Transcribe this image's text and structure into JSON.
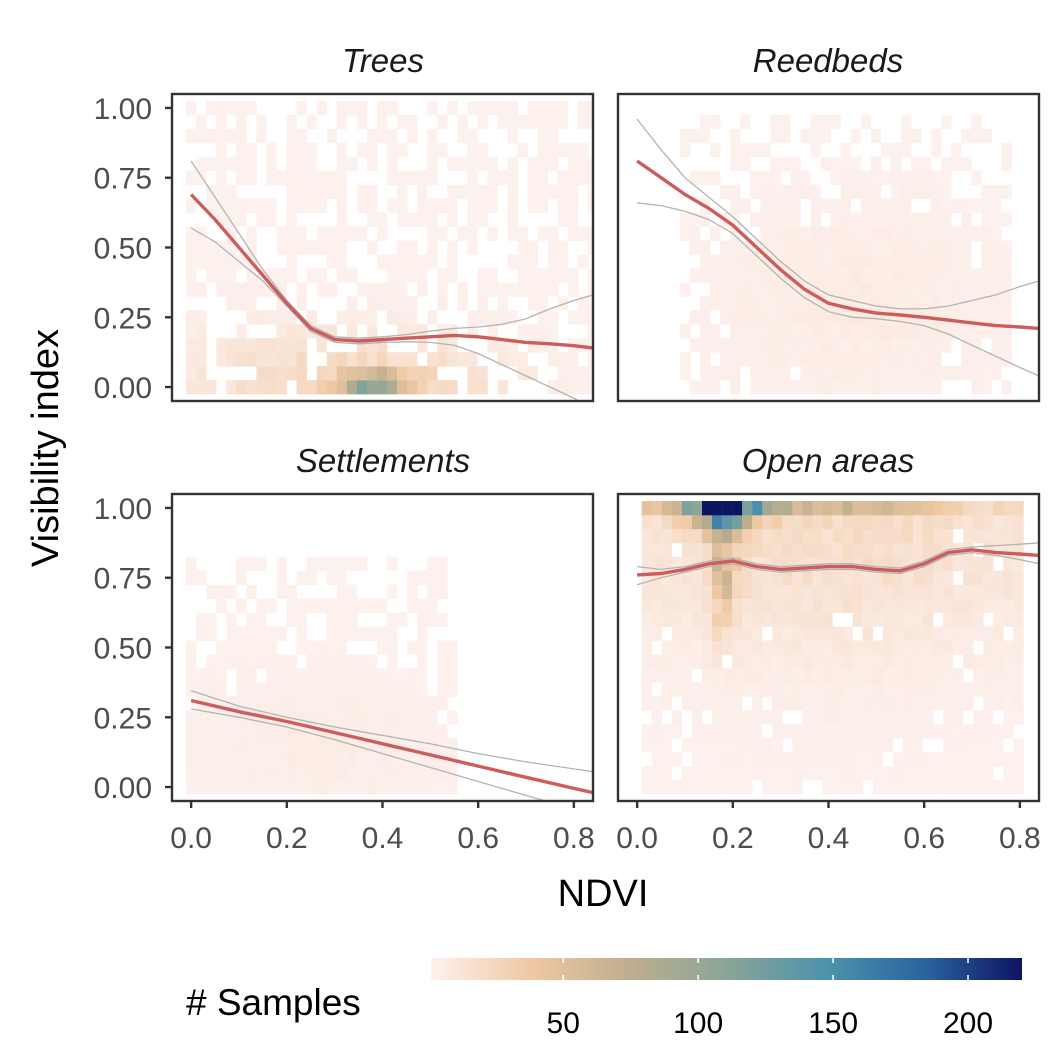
{
  "chart_data": {
    "type": "heatmap",
    "xlabel": "NDVI",
    "ylabel": "Visibility index",
    "x_ticks": [
      "0.0",
      "0.2",
      "0.4",
      "0.6",
      "0.8"
    ],
    "x_tick_values": [
      0.0,
      0.2,
      0.4,
      0.6,
      0.8
    ],
    "y_ticks": [
      "0.00",
      "0.25",
      "0.50",
      "0.75",
      "1.00"
    ],
    "y_tick_values": [
      0.0,
      0.25,
      0.5,
      0.75,
      1.0
    ],
    "xlim": [
      -0.04,
      0.84
    ],
    "ylim": [
      -0.05,
      1.05
    ],
    "bin_width": 0.021,
    "bin_height": 0.05,
    "grid": false,
    "legend": {
      "title": "# Samples",
      "position": "bottom",
      "min": 1,
      "max": 220,
      "ticks": [
        50,
        100,
        150,
        200
      ],
      "tick_labels": [
        "50",
        "100",
        "150",
        "200"
      ],
      "colors": [
        "#fdf1ee",
        "#f0c9a3",
        "#bfae8e",
        "#8aa598",
        "#4e93ab",
        "#2b64a0",
        "#0d1461"
      ]
    },
    "smooth_color": "#cd5c5c",
    "ci_color": "#b3b3b3",
    "panels": [
      {
        "title": "Trees",
        "smooth": {
          "x": [
            0.0,
            0.05,
            0.1,
            0.15,
            0.2,
            0.25,
            0.3,
            0.35,
            0.4,
            0.45,
            0.5,
            0.55,
            0.6,
            0.65,
            0.7,
            0.75,
            0.8,
            0.84
          ],
          "y": [
            0.69,
            0.6,
            0.5,
            0.4,
            0.3,
            0.21,
            0.17,
            0.165,
            0.17,
            0.175,
            0.18,
            0.185,
            0.18,
            0.17,
            0.16,
            0.155,
            0.148,
            0.14
          ],
          "lower": [
            0.57,
            0.52,
            0.45,
            0.38,
            0.29,
            0.2,
            0.16,
            0.155,
            0.16,
            0.162,
            0.16,
            0.15,
            0.12,
            0.08,
            0.04,
            0.0,
            -0.04,
            -0.08
          ],
          "upper": [
            0.81,
            0.68,
            0.55,
            0.42,
            0.31,
            0.22,
            0.18,
            0.175,
            0.18,
            0.188,
            0.2,
            0.21,
            0.215,
            0.225,
            0.245,
            0.28,
            0.31,
            0.33
          ]
        },
        "density": [
          {
            "x": 0.18,
            "y": 0.0,
            "sx": 0.32,
            "sy": 0.25,
            "w": 0.3
          },
          {
            "x": 0.36,
            "y": 0.0,
            "sx": 0.2,
            "sy": 0.12,
            "w": 1.2
          },
          {
            "x": 0.38,
            "y": 0.02,
            "sx": 0.04,
            "sy": 0.02,
            "w": 6.0
          }
        ],
        "peak": 100,
        "x_range": [
          0.0,
          0.84
        ],
        "y_range": [
          0.0,
          1.0
        ],
        "fill": 0.55
      },
      {
        "title": "Reedbeds",
        "smooth": {
          "x": [
            0.0,
            0.05,
            0.1,
            0.15,
            0.2,
            0.25,
            0.3,
            0.35,
            0.4,
            0.45,
            0.5,
            0.55,
            0.6,
            0.65,
            0.7,
            0.75,
            0.8,
            0.84
          ],
          "y": [
            0.81,
            0.75,
            0.69,
            0.64,
            0.58,
            0.5,
            0.42,
            0.35,
            0.3,
            0.28,
            0.265,
            0.258,
            0.25,
            0.24,
            0.23,
            0.22,
            0.215,
            0.21
          ],
          "lower": [
            0.66,
            0.65,
            0.63,
            0.6,
            0.55,
            0.47,
            0.39,
            0.32,
            0.27,
            0.25,
            0.245,
            0.235,
            0.22,
            0.19,
            0.15,
            0.11,
            0.07,
            0.04
          ],
          "upper": [
            0.96,
            0.85,
            0.75,
            0.68,
            0.61,
            0.53,
            0.45,
            0.38,
            0.33,
            0.31,
            0.29,
            0.28,
            0.28,
            0.29,
            0.31,
            0.33,
            0.36,
            0.38
          ]
        },
        "density": [
          {
            "x": 0.45,
            "y": 0.3,
            "sx": 0.25,
            "sy": 0.3,
            "w": 1.0
          }
        ],
        "peak": 6,
        "x_range": [
          0.1,
          0.78
        ],
        "y_range": [
          0.0,
          0.95
        ],
        "fill": 0.35
      },
      {
        "title": "Settlements",
        "smooth": {
          "x": [
            0.0,
            0.1,
            0.2,
            0.3,
            0.4,
            0.5,
            0.6,
            0.7,
            0.8,
            0.84
          ],
          "y": [
            0.31,
            0.27,
            0.235,
            0.195,
            0.155,
            0.115,
            0.075,
            0.035,
            -0.005,
            -0.02
          ],
          "lower": [
            0.28,
            0.25,
            0.215,
            0.17,
            0.12,
            0.07,
            0.02,
            -0.03,
            -0.08,
            -0.1
          ],
          "upper": [
            0.345,
            0.29,
            0.25,
            0.215,
            0.185,
            0.155,
            0.12,
            0.09,
            0.065,
            0.055
          ]
        },
        "density": [
          {
            "x": 0.25,
            "y": 0.15,
            "sx": 0.22,
            "sy": 0.22,
            "w": 1.0
          }
        ],
        "peak": 5,
        "x_range": [
          0.0,
          0.55
        ],
        "y_range": [
          0.0,
          0.8
        ],
        "fill": 0.45
      },
      {
        "title": "Open areas",
        "smooth": {
          "x": [
            0.0,
            0.05,
            0.1,
            0.15,
            0.2,
            0.25,
            0.3,
            0.35,
            0.4,
            0.45,
            0.5,
            0.55,
            0.6,
            0.65,
            0.7,
            0.75,
            0.8,
            0.84
          ],
          "y": [
            0.76,
            0.765,
            0.78,
            0.8,
            0.81,
            0.79,
            0.78,
            0.785,
            0.79,
            0.79,
            0.78,
            0.775,
            0.8,
            0.84,
            0.85,
            0.84,
            0.835,
            0.83
          ],
          "lower": [
            0.725,
            0.75,
            0.77,
            0.79,
            0.8,
            0.78,
            0.77,
            0.775,
            0.78,
            0.78,
            0.77,
            0.765,
            0.79,
            0.83,
            0.84,
            0.83,
            0.815,
            0.8
          ],
          "upper": [
            0.79,
            0.78,
            0.79,
            0.81,
            0.82,
            0.8,
            0.79,
            0.795,
            0.8,
            0.8,
            0.79,
            0.785,
            0.81,
            0.85,
            0.86,
            0.865,
            0.87,
            0.875
          ]
        },
        "density": [
          {
            "x": 0.42,
            "y": 0.95,
            "sx": 0.4,
            "sy": 0.3,
            "w": 1.5
          },
          {
            "x": 0.18,
            "y": 1.0,
            "sx": 0.05,
            "sy": 0.05,
            "w": 12.0
          },
          {
            "x": 0.18,
            "y": 0.8,
            "sx": 0.02,
            "sy": 0.15,
            "w": 4.0
          },
          {
            "x": 0.3,
            "y": 1.0,
            "sx": 0.25,
            "sy": 0.02,
            "w": 4.0
          },
          {
            "x": 0.4,
            "y": 0.4,
            "sx": 0.3,
            "sy": 0.35,
            "w": 0.2
          }
        ],
        "peak": 220,
        "x_range": [
          0.02,
          0.8
        ],
        "y_range": [
          0.0,
          1.0
        ],
        "fill": 0.88
      }
    ]
  }
}
